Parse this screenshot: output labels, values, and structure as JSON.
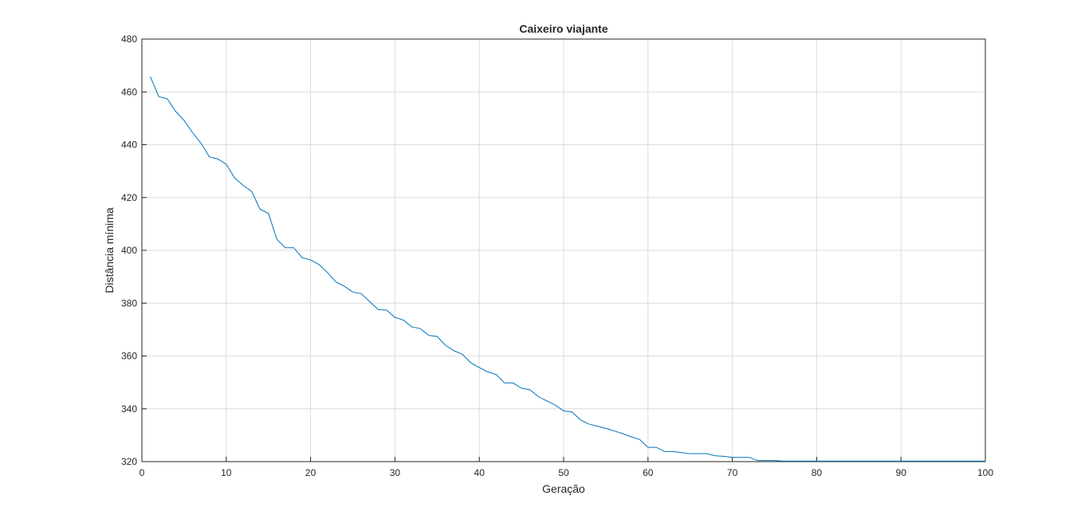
{
  "chart_data": {
    "type": "line",
    "title": "Caixeiro viajante",
    "xlabel": "Geração",
    "ylabel": "Distância mínima",
    "xlim": [
      0,
      100
    ],
    "ylim": [
      320,
      480
    ],
    "xticks": [
      0,
      10,
      20,
      30,
      40,
      50,
      60,
      70,
      80,
      90,
      100
    ],
    "yticks": [
      320,
      340,
      360,
      380,
      400,
      420,
      440,
      460,
      480
    ],
    "grid": true,
    "series_color": "#0072BD",
    "series": [
      {
        "x": [
          1,
          2,
          3,
          4,
          5,
          6,
          7,
          8,
          9,
          10,
          11,
          12,
          13,
          14,
          15,
          16,
          17,
          18,
          19,
          20,
          21,
          22,
          23,
          24,
          25,
          26,
          27,
          28,
          29,
          30,
          31,
          32,
          33,
          34,
          35,
          36,
          37,
          38,
          39,
          40,
          41,
          42,
          43,
          44,
          45,
          46,
          47,
          48,
          49,
          50,
          51,
          52,
          53,
          54,
          55,
          56,
          57,
          58,
          59,
          60,
          61,
          62,
          63,
          64,
          65,
          66,
          67,
          68,
          69,
          70,
          71,
          72,
          73,
          74,
          75,
          76,
          77,
          78,
          79,
          80,
          81,
          82,
          83,
          84,
          85,
          86,
          87,
          88,
          89,
          90,
          91,
          92,
          93,
          94,
          95,
          96,
          97,
          98,
          99,
          100
        ],
        "y": [
          465.8,
          458.2,
          457.4,
          452.6,
          449.2,
          444.6,
          440.6,
          435.4,
          434.6,
          432.6,
          427.4,
          424.6,
          422.4,
          415.6,
          414.0,
          404.2,
          401.0,
          401.0,
          397.2,
          396.4,
          394.6,
          391.6,
          388.0,
          386.4,
          384.2,
          383.6,
          380.6,
          377.6,
          377.4,
          374.6,
          373.6,
          371.0,
          370.4,
          367.8,
          367.4,
          364.0,
          362.0,
          360.6,
          357.4,
          355.6,
          354.0,
          353.0,
          349.8,
          349.8,
          347.8,
          347.2,
          344.6,
          343.0,
          341.4,
          339.2,
          338.8,
          335.8,
          334.2,
          333.4,
          332.6,
          331.6,
          330.6,
          329.4,
          328.4,
          325.4,
          325.4,
          323.8,
          323.8,
          323.4,
          323.0,
          323.0,
          323.0,
          322.2,
          322.0,
          321.6,
          321.6,
          321.6,
          320.4,
          320.4,
          320.4,
          320.2,
          320.2,
          320.2,
          320.2,
          320.2,
          320.2,
          320.2,
          320.2,
          320.2,
          320.2,
          320.2,
          320.2,
          320.2,
          320.2,
          320.2,
          320.2,
          320.2,
          320.2,
          320.2,
          320.2,
          320.2,
          320.2,
          320.2,
          320.2,
          320.2
        ]
      }
    ]
  }
}
